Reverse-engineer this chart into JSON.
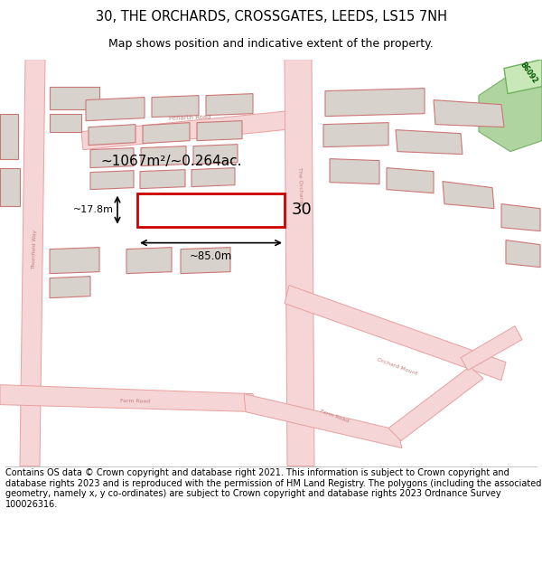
{
  "title_line1": "30, THE ORCHARDS, CROSSGATES, LEEDS, LS15 7NH",
  "title_line2": "Map shows position and indicative extent of the property.",
  "footer_text": "Contains OS data © Crown copyright and database right 2021. This information is subject to Crown copyright and database rights 2023 and is reproduced with the permission of HM Land Registry. The polygons (including the associated geometry, namely x, y co-ordinates) are subject to Crown copyright and database rights 2023 Ordnance Survey 100026316.",
  "map_bg": "#f2eeea",
  "road_fill": "#f5d5d5",
  "road_edge": "#e8a0a0",
  "bld_fill": "#d8d2cc",
  "bld_edge": "#cc7777",
  "prop_edge": "#cc0000",
  "green_fill": "#b0d4a0",
  "green_edge": "#78b068",
  "area_label": "~1067m²/~0.264ac.",
  "width_label": "~85.0m",
  "height_label": "~17.8m",
  "property_number": "30",
  "title_fontsize": 10.5,
  "subtitle_fontsize": 9,
  "footer_fontsize": 7.0
}
